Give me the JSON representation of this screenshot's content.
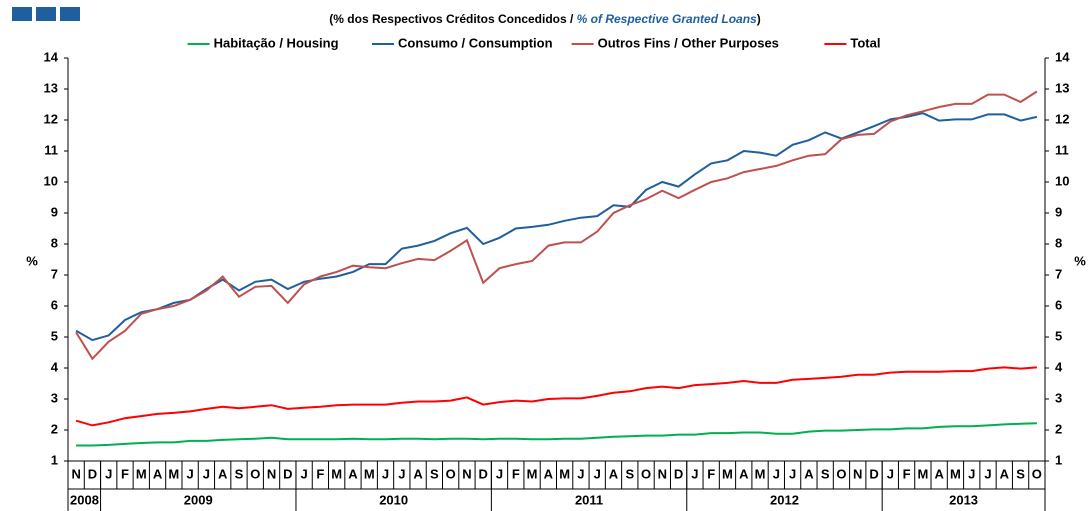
{
  "chart_data": {
    "type": "line",
    "subtitle": [
      "(% dos Respectivos  Créditos Concedidos / ",
      "% of Respective Granted Loans",
      ")"
    ],
    "categories": [
      "N",
      "D",
      "J",
      "F",
      "M",
      "A",
      "M",
      "J",
      "J",
      "A",
      "S",
      "O",
      "N",
      "D",
      "J",
      "F",
      "M",
      "A",
      "M",
      "J",
      "J",
      "A",
      "S",
      "O",
      "N",
      "D",
      "J",
      "F",
      "M",
      "A",
      "M",
      "J",
      "J",
      "A",
      "S",
      "O",
      "N",
      "D",
      "J",
      "F",
      "M",
      "A",
      "M",
      "J",
      "J",
      "A",
      "S",
      "O",
      "N",
      "D",
      "J",
      "F",
      "M",
      "A",
      "M",
      "J",
      "J",
      "A",
      "S",
      "O"
    ],
    "years": [
      "2008",
      "2009",
      "2010",
      "2011",
      "2012",
      "2013"
    ],
    "ylabel": "%",
    "y2label": "%",
    "ylim": [
      1,
      14
    ],
    "yticks": [
      1,
      2,
      3,
      4,
      5,
      6,
      7,
      8,
      9,
      10,
      11,
      12,
      13,
      14
    ],
    "y2lim": [
      1,
      14
    ],
    "y2ticks": [
      1,
      2,
      3,
      4,
      5,
      6,
      7,
      8,
      9,
      10,
      11,
      12,
      13,
      14
    ],
    "legend": "top",
    "series": [
      {
        "name": "Habitação / Housing",
        "color": "#00b050",
        "values": [
          1.5,
          1.5,
          1.52,
          1.55,
          1.58,
          1.6,
          1.6,
          1.65,
          1.65,
          1.68,
          1.7,
          1.72,
          1.75,
          1.7,
          1.7,
          1.7,
          1.7,
          1.72,
          1.7,
          1.7,
          1.72,
          1.72,
          1.7,
          1.72,
          1.72,
          1.7,
          1.72,
          1.72,
          1.7,
          1.7,
          1.72,
          1.72,
          1.75,
          1.78,
          1.8,
          1.82,
          1.82,
          1.85,
          1.85,
          1.9,
          1.9,
          1.92,
          1.92,
          1.88,
          1.88,
          1.95,
          1.98,
          1.98,
          2.0,
          2.02,
          2.02,
          2.05,
          2.05,
          2.1,
          2.12,
          2.12,
          2.15,
          2.18,
          2.2,
          2.22
        ]
      },
      {
        "name": "Consumo / Consumption",
        "color": "#1f5f9e",
        "values": [
          5.2,
          4.9,
          5.05,
          5.55,
          5.8,
          5.9,
          6.1,
          6.2,
          6.55,
          6.85,
          6.5,
          6.78,
          6.85,
          6.55,
          6.78,
          6.88,
          6.95,
          7.1,
          7.35,
          7.35,
          7.85,
          7.95,
          8.1,
          8.35,
          8.52,
          8.0,
          8.2,
          8.5,
          8.55,
          8.62,
          8.75,
          8.85,
          8.9,
          9.25,
          9.2,
          9.75,
          10.0,
          9.85,
          10.25,
          10.6,
          10.7,
          11.0,
          10.95,
          10.85,
          11.2,
          11.35,
          11.6,
          11.4,
          11.6,
          11.8,
          12.02,
          12.1,
          12.22,
          11.98,
          12.02,
          12.02,
          12.18,
          12.18,
          11.98,
          12.1
        ]
      },
      {
        "name": "Outros Fins / Other Purposes",
        "color": "#c0504d",
        "values": [
          5.15,
          4.3,
          4.85,
          5.2,
          5.75,
          5.9,
          6.0,
          6.2,
          6.5,
          6.95,
          6.3,
          6.62,
          6.65,
          6.1,
          6.7,
          6.95,
          7.1,
          7.3,
          7.25,
          7.22,
          7.38,
          7.52,
          7.48,
          7.78,
          8.12,
          6.75,
          7.22,
          7.35,
          7.45,
          7.95,
          8.05,
          8.05,
          8.4,
          9.0,
          9.25,
          9.45,
          9.72,
          9.48,
          9.75,
          10.0,
          10.12,
          10.32,
          10.42,
          10.52,
          10.7,
          10.85,
          10.9,
          11.38,
          11.52,
          11.55,
          11.95,
          12.15,
          12.28,
          12.42,
          12.52,
          12.52,
          12.82,
          12.82,
          12.58,
          12.92
        ]
      },
      {
        "name": "Total",
        "color": "#ff0000",
        "values": [
          2.3,
          2.15,
          2.25,
          2.38,
          2.45,
          2.52,
          2.55,
          2.6,
          2.68,
          2.75,
          2.7,
          2.75,
          2.8,
          2.68,
          2.72,
          2.75,
          2.8,
          2.82,
          2.82,
          2.82,
          2.88,
          2.92,
          2.92,
          2.95,
          3.05,
          2.82,
          2.9,
          2.95,
          2.92,
          3.0,
          3.02,
          3.02,
          3.1,
          3.2,
          3.25,
          3.35,
          3.4,
          3.35,
          3.45,
          3.48,
          3.52,
          3.58,
          3.52,
          3.52,
          3.62,
          3.65,
          3.68,
          3.72,
          3.78,
          3.78,
          3.85,
          3.88,
          3.88,
          3.88,
          3.9,
          3.9,
          3.98,
          4.02,
          3.98,
          4.02
        ]
      }
    ]
  }
}
